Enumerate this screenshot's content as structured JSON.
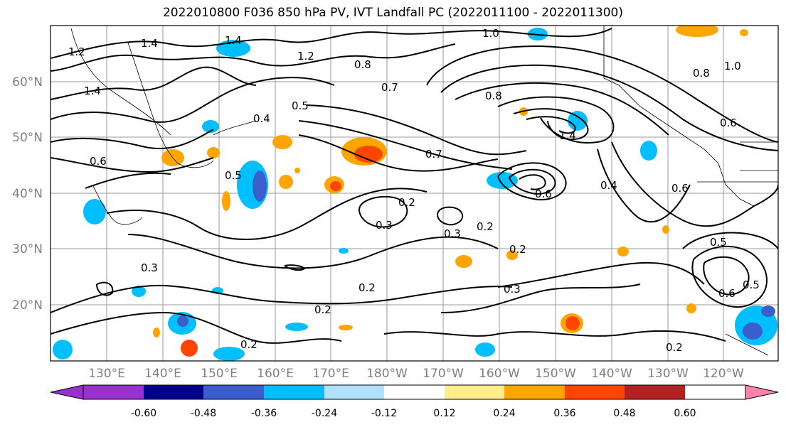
{
  "title": "2022010800 F036 850 hPa PV, IVT Landfall PC (2022011100 - 2022011300)",
  "map": {
    "lat_labels": [
      "60°N",
      "50°N",
      "40°N",
      "30°N",
      "20°N"
    ],
    "lon_labels": [
      "130°E",
      "140°E",
      "150°E",
      "160°E",
      "170°E",
      "180°W",
      "170°W",
      "160°W",
      "150°W",
      "140°W",
      "130°W",
      "120°W"
    ],
    "contour_labels": [
      "1.4",
      "1.2",
      "1.4",
      "1.2",
      "0.8",
      "0.7",
      "1.0",
      "0.8",
      "1.0",
      "1.4",
      "0.6",
      "0.5",
      "0.4",
      "0.5",
      "0.7",
      "0.6",
      "0.5",
      "0.2",
      "0.3",
      "0.3",
      "0.2",
      "0.6",
      "0.2",
      "0.3",
      "0.2",
      "0.3",
      "0.2",
      "0.2",
      "0.5",
      "0.6",
      "0.2",
      "0.4",
      "0.6",
      "0.8",
      "1.4"
    ],
    "colors": {
      "coast": "#000000",
      "grid": "#999999"
    }
  },
  "colorbar": {
    "colors": [
      "#9932cc",
      "#00008b",
      "#3a5fcd",
      "#00bfff",
      "#b0e2ff",
      "#ffffff",
      "#ffec8b",
      "#ffa500",
      "#ff4500",
      "#b22222",
      "#ff82ab"
    ],
    "tick_labels": [
      "-0.60",
      "-0.48",
      "-0.36",
      "-0.24",
      "-0.12",
      "0.12",
      "0.24",
      "0.36",
      "0.48",
      "0.60"
    ]
  }
}
